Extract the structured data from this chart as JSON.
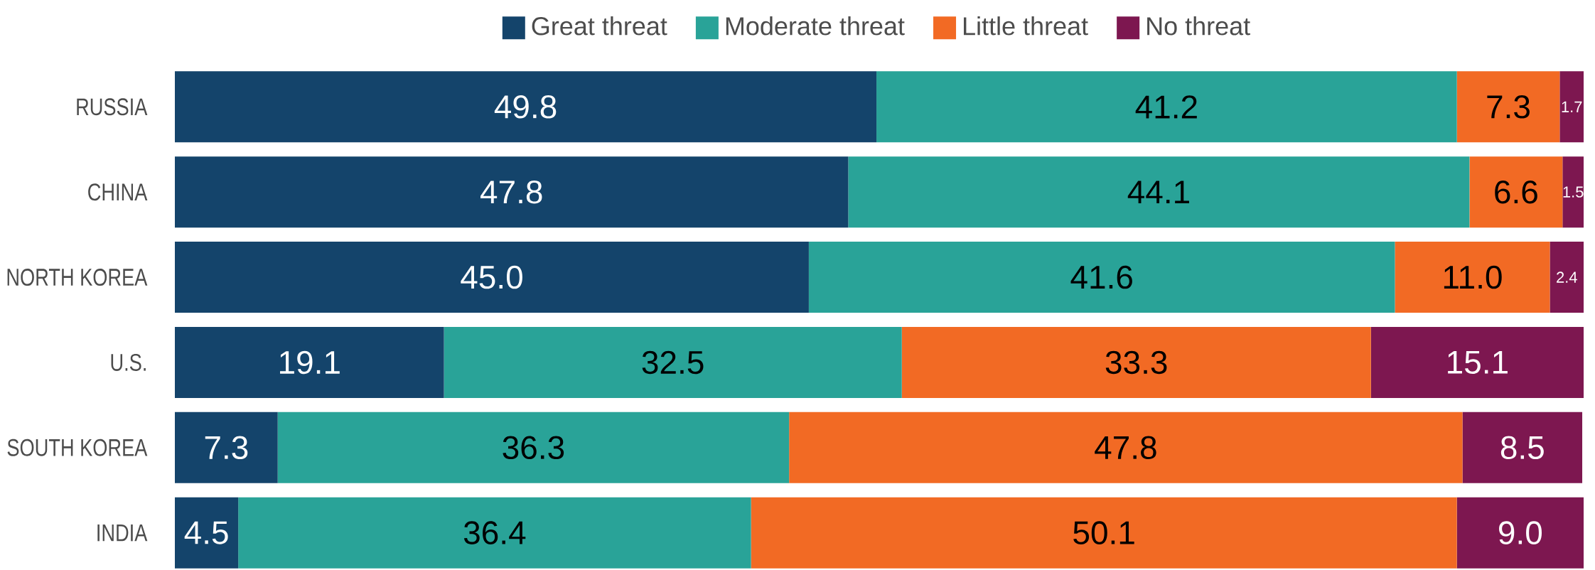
{
  "chart_data": {
    "type": "bar",
    "orientation": "horizontal",
    "stacked": true,
    "legend": "top",
    "tick_labels": "y",
    "xlim": [
      0,
      100
    ],
    "categories": [
      "RUSSIA",
      "CHINA",
      "NORTH KOREA",
      "U.S.",
      "SOUTH KOREA",
      "INDIA"
    ],
    "series": [
      {
        "name": "Great threat",
        "color": "#14446b",
        "values": [
          49.8,
          47.8,
          45.0,
          19.1,
          7.3,
          4.5
        ],
        "value_labels": [
          "49.8",
          "47.8",
          "45.0",
          "19.1",
          "7.3",
          "4.5"
        ]
      },
      {
        "name": "Moderate threat",
        "color": "#29a398",
        "values": [
          41.2,
          44.1,
          41.6,
          32.5,
          36.3,
          36.4
        ],
        "value_labels": [
          "41.2",
          "44.1",
          "41.6",
          "32.5",
          "36.3",
          "36.4"
        ]
      },
      {
        "name": "Little threat",
        "color": "#f26a24",
        "values": [
          7.3,
          6.6,
          11.0,
          33.3,
          47.8,
          50.1
        ],
        "value_labels": [
          "7.3",
          "6.6",
          "11.0",
          "33.3",
          "47.8",
          "50.1"
        ]
      },
      {
        "name": "No threat",
        "color": "#7d1750",
        "values": [
          1.7,
          1.5,
          2.4,
          15.1,
          8.5,
          9.0
        ],
        "value_labels": [
          "1.7",
          "1.5",
          "2.4",
          "15.1",
          "8.5",
          "9.0"
        ]
      }
    ]
  }
}
